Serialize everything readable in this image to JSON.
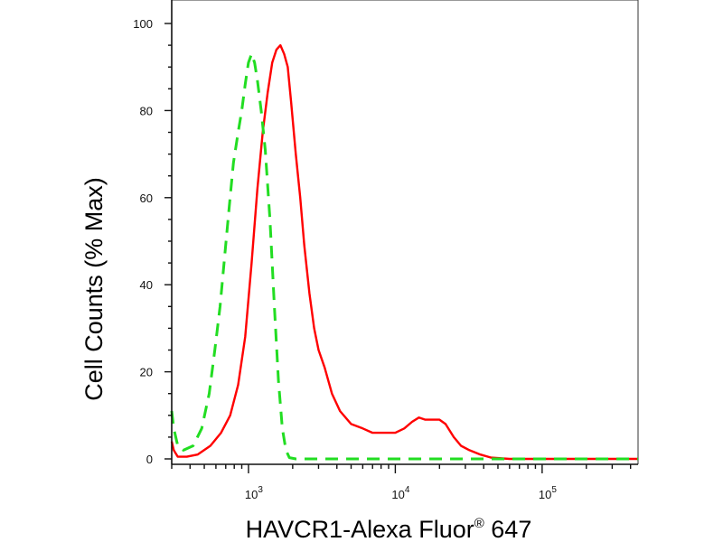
{
  "chart_data": {
    "type": "line",
    "xlabel_main": "HAVCR1-Alexa Fluor",
    "xlabel_sup": "®",
    "xlabel_tail": " 647",
    "ylabel": "Cell Counts (% Max)",
    "x_scale": "log",
    "xlim": [
      300,
      450000
    ],
    "ylim": [
      0,
      100
    ],
    "y_ticks": [
      0,
      20,
      40,
      60,
      80,
      100
    ],
    "x_major_ticks": [
      {
        "value": 1000,
        "base": "10",
        "exp": "3"
      },
      {
        "value": 10000,
        "base": "10",
        "exp": "4"
      },
      {
        "value": 100000,
        "base": "10",
        "exp": "5"
      }
    ],
    "series": [
      {
        "color": "#ff0000",
        "style": "solid",
        "points": [
          [
            300,
            4
          ],
          [
            310,
            2
          ],
          [
            330,
            0.5
          ],
          [
            380,
            0.5
          ],
          [
            450,
            1
          ],
          [
            550,
            3
          ],
          [
            650,
            6
          ],
          [
            750,
            10
          ],
          [
            850,
            17
          ],
          [
            950,
            28
          ],
          [
            1050,
            45
          ],
          [
            1150,
            62
          ],
          [
            1250,
            75
          ],
          [
            1350,
            84
          ],
          [
            1450,
            91
          ],
          [
            1550,
            94
          ],
          [
            1650,
            95
          ],
          [
            1750,
            93
          ],
          [
            1850,
            90
          ],
          [
            1950,
            82
          ],
          [
            2100,
            70
          ],
          [
            2250,
            60
          ],
          [
            2400,
            49
          ],
          [
            2600,
            38
          ],
          [
            2800,
            30
          ],
          [
            3000,
            25
          ],
          [
            3300,
            21
          ],
          [
            3700,
            15
          ],
          [
            4200,
            11
          ],
          [
            5000,
            8
          ],
          [
            6000,
            7
          ],
          [
            7000,
            6
          ],
          [
            8500,
            6
          ],
          [
            10000,
            6
          ],
          [
            11500,
            7
          ],
          [
            13000,
            8.5
          ],
          [
            14500,
            9.5
          ],
          [
            16000,
            9
          ],
          [
            18000,
            9
          ],
          [
            20000,
            9
          ],
          [
            22000,
            8
          ],
          [
            25000,
            5
          ],
          [
            28000,
            3
          ],
          [
            32000,
            2
          ],
          [
            38000,
            1
          ],
          [
            45000,
            0.3
          ],
          [
            60000,
            0
          ],
          [
            450000,
            0
          ]
        ]
      },
      {
        "color": "#22dd22",
        "style": "dashed",
        "points": [
          [
            300,
            11
          ],
          [
            310,
            7
          ],
          [
            330,
            3
          ],
          [
            360,
            2
          ],
          [
            420,
            3
          ],
          [
            480,
            7
          ],
          [
            540,
            15
          ],
          [
            590,
            25
          ],
          [
            640,
            35
          ],
          [
            690,
            47
          ],
          [
            740,
            58
          ],
          [
            790,
            68
          ],
          [
            850,
            75
          ],
          [
            900,
            80
          ],
          [
            950,
            86
          ],
          [
            1000,
            91
          ],
          [
            1050,
            93
          ],
          [
            1100,
            91
          ],
          [
            1150,
            87
          ],
          [
            1220,
            80
          ],
          [
            1300,
            71
          ],
          [
            1400,
            55
          ],
          [
            1500,
            35
          ],
          [
            1600,
            18
          ],
          [
            1700,
            7
          ],
          [
            1800,
            2
          ],
          [
            1900,
            0.3
          ],
          [
            2100,
            0
          ],
          [
            450000,
            0
          ]
        ]
      }
    ]
  }
}
